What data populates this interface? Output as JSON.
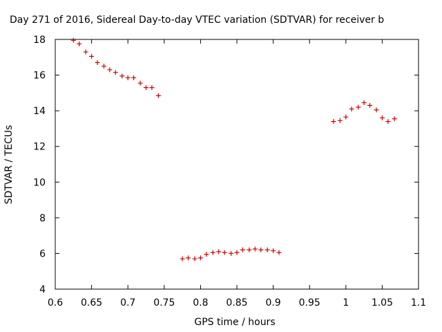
{
  "chart_data": {
    "type": "scatter",
    "title": "Day 271 of 2016, Sidereal Day-to-day VTEC variation (SDTVAR) for receiver b",
    "xlabel": "GPS time / hours",
    "ylabel": "SDTVAR / TECUs",
    "xlim": [
      0.6,
      1.1
    ],
    "ylim": [
      4,
      18
    ],
    "x_ticks": [
      0.6,
      0.65,
      0.7,
      0.75,
      0.8,
      0.85,
      0.9,
      0.95,
      1,
      1.05,
      1.1
    ],
    "x_tick_labels": [
      "0.6",
      "0.65",
      "0.7",
      "0.75",
      "0.8",
      "0.85",
      "0.9",
      "0.95",
      "1",
      "1.05",
      "1.1"
    ],
    "y_ticks": [
      4,
      6,
      8,
      10,
      12,
      14,
      16,
      18
    ],
    "y_tick_labels": [
      "4",
      "6",
      "8",
      "10",
      "12",
      "14",
      "16",
      "18"
    ],
    "grid": false,
    "marker": "plus",
    "color": "#cc0000",
    "series": [
      {
        "name": "SDTVAR",
        "points": [
          [
            0.625,
            17.95
          ],
          [
            0.633,
            17.75
          ],
          [
            0.642,
            17.3
          ],
          [
            0.65,
            17.05
          ],
          [
            0.658,
            16.7
          ],
          [
            0.667,
            16.5
          ],
          [
            0.675,
            16.3
          ],
          [
            0.683,
            16.15
          ],
          [
            0.692,
            15.95
          ],
          [
            0.7,
            15.85
          ],
          [
            0.708,
            15.85
          ],
          [
            0.717,
            15.55
          ],
          [
            0.725,
            15.3
          ],
          [
            0.733,
            15.3
          ],
          [
            0.742,
            14.85
          ],
          [
            0.775,
            5.7
          ],
          [
            0.783,
            5.75
          ],
          [
            0.792,
            5.7
          ],
          [
            0.8,
            5.75
          ],
          [
            0.808,
            5.95
          ],
          [
            0.817,
            6.05
          ],
          [
            0.825,
            6.1
          ],
          [
            0.833,
            6.05
          ],
          [
            0.842,
            6.0
          ],
          [
            0.85,
            6.05
          ],
          [
            0.858,
            6.2
          ],
          [
            0.867,
            6.2
          ],
          [
            0.875,
            6.25
          ],
          [
            0.883,
            6.2
          ],
          [
            0.892,
            6.2
          ],
          [
            0.9,
            6.15
          ],
          [
            0.908,
            6.05
          ],
          [
            0.983,
            13.4
          ],
          [
            0.992,
            13.45
          ],
          [
            1.0,
            13.65
          ],
          [
            1.008,
            14.1
          ],
          [
            1.017,
            14.2
          ],
          [
            1.025,
            14.45
          ],
          [
            1.033,
            14.3
          ],
          [
            1.042,
            14.05
          ],
          [
            1.05,
            13.6
          ],
          [
            1.058,
            13.4
          ],
          [
            1.067,
            13.55
          ]
        ]
      }
    ]
  }
}
